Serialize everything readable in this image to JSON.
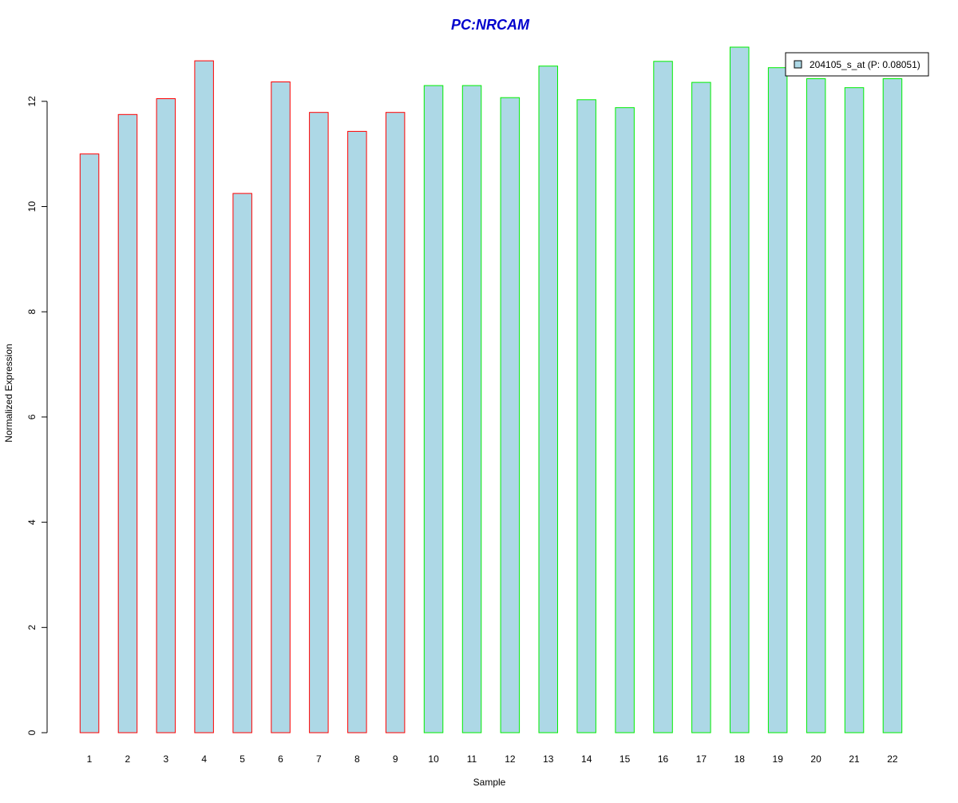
{
  "chart_data": {
    "type": "bar",
    "title": "PC:NRCAM",
    "xlabel": "Sample",
    "ylabel": "Normalized Expression",
    "categories": [
      "1",
      "2",
      "3",
      "4",
      "5",
      "6",
      "7",
      "8",
      "9",
      "10",
      "11",
      "12",
      "13",
      "14",
      "15",
      "16",
      "17",
      "18",
      "19",
      "20",
      "21",
      "22"
    ],
    "series": [
      {
        "name": "204105_s_at (P: 0.08051)",
        "values": [
          11.0,
          11.75,
          12.05,
          12.77,
          10.25,
          12.37,
          11.79,
          11.43,
          11.79,
          12.3,
          12.3,
          12.07,
          12.67,
          12.03,
          11.88,
          12.76,
          12.36,
          13.03,
          12.64,
          12.43,
          12.26,
          12.43
        ]
      }
    ],
    "bar_fill": "#add8e6",
    "group_colors": {
      "group1": "#ff0000",
      "group2": "#00ee00"
    },
    "bar_groups": [
      "group1",
      "group1",
      "group1",
      "group1",
      "group1",
      "group1",
      "group1",
      "group1",
      "group1",
      "group2",
      "group2",
      "group2",
      "group2",
      "group2",
      "group2",
      "group2",
      "group2",
      "group2",
      "group2",
      "group2",
      "group2",
      "group2"
    ],
    "ylim": [
      0,
      13.03
    ],
    "yticks": [
      0,
      2,
      4,
      6,
      8,
      10,
      12
    ],
    "title_color": "#0000cd",
    "legend": {
      "position": "top-right",
      "label": "204105_s_at (P: 0.08051)"
    },
    "grid": false
  }
}
